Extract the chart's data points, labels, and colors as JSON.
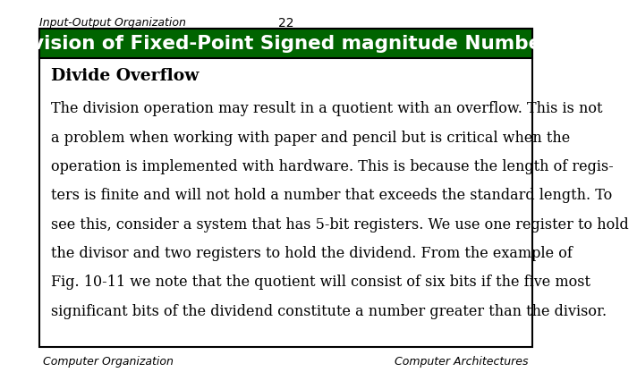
{
  "header_left": "Input-Output Organization",
  "header_center": "22",
  "title": "Division of Fixed-Point Signed magnitude Numbers",
  "subtitle": "Divide Overflow",
  "body_lines": [
    "The division operation may result in a quotient with an overflow. This is not",
    "a problem when working with paper and pencil but is critical when the",
    "operation is implemented with hardware. This is because the length of regis-",
    "ters is finite and will not hold a number that exceeds the standard length. To",
    "see this, consider a system that has 5-bit registers. We use one register to hold",
    "the divisor and two registers to hold the dividend. From the example of",
    "Fig. 10-11 we note that the quotient will consist of six bits if the five most",
    "significant bits of the dividend constitute a number greater than the divisor."
  ],
  "footer_left": "Computer Organization",
  "footer_right": "Computer Architectures",
  "bg_color": "#ffffff",
  "title_bg_color": "#006400",
  "title_text_color": "#ffffff",
  "header_text_color": "#000000",
  "body_text_color": "#000000",
  "subtitle_text_color": "#000000",
  "footer_text_color": "#000000",
  "border_color": "#000000"
}
